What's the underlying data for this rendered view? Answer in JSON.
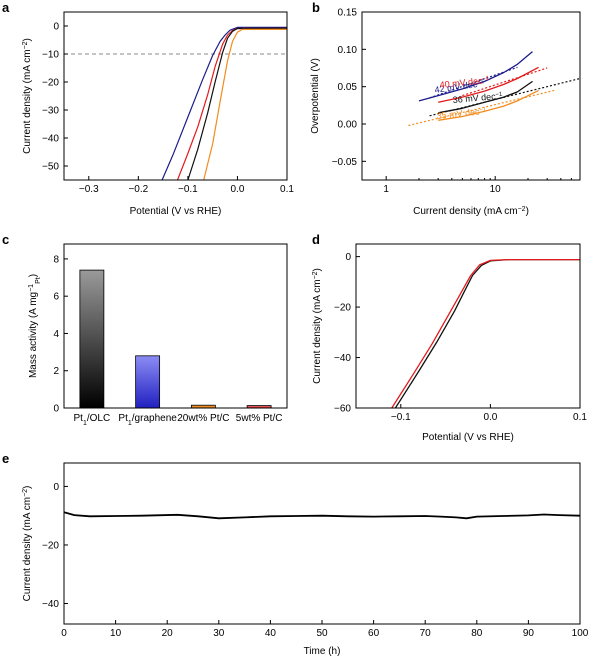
{
  "chart_data": [
    {
      "panel": "a",
      "type": "line",
      "xlabel": "Potential (V vs RHE)",
      "ylabel_main": "Current density (mA cm",
      "ylabel_sup": "−2",
      "ylabel_tail": ")",
      "xlim": [
        -0.35,
        0.1
      ],
      "ylim": [
        -55,
        5
      ],
      "xticks": [
        -0.3,
        -0.2,
        -0.1,
        0.0,
        0.1
      ],
      "xtick_labels": [
        "−0.3",
        "−0.2",
        "−0.1",
        "0.0",
        "0.1"
      ],
      "yticks": [
        0,
        -10,
        -20,
        -30,
        -40,
        -50
      ],
      "ytick_labels": [
        "0",
        "−10",
        "−20",
        "−30",
        "−40",
        "−50"
      ],
      "reference_line_y": -10,
      "series": [
        {
          "color": "#1c1c8c",
          "x": [
            -0.152,
            -0.13,
            -0.1,
            -0.07,
            -0.05,
            -0.035,
            -0.025,
            -0.015,
            0.0,
            0.1
          ],
          "y": [
            -55,
            -46,
            -32.5,
            -19,
            -10.5,
            -5.5,
            -3.2,
            -1.5,
            -0.5,
            -0.5
          ]
        },
        {
          "color": "#e31a1c",
          "x": [
            -0.121,
            -0.1,
            -0.08,
            -0.06,
            -0.045,
            -0.03,
            -0.02,
            -0.01,
            0.0,
            0.1
          ],
          "y": [
            -55,
            -45.5,
            -36,
            -24.5,
            -14.5,
            -6.5,
            -3.3,
            -1.6,
            -0.9,
            -0.9
          ]
        },
        {
          "color": "#111111",
          "x": [
            -0.1,
            -0.08,
            -0.06,
            -0.045,
            -0.03,
            -0.02,
            -0.01,
            0.0,
            0.1
          ],
          "y": [
            -55,
            -44,
            -31,
            -20,
            -9.5,
            -4.4,
            -1.9,
            -0.9,
            -0.8
          ]
        },
        {
          "color": "#f28c1e",
          "x": [
            -0.068,
            -0.05,
            -0.035,
            -0.02,
            -0.01,
            0.0,
            0.01,
            0.1
          ],
          "y": [
            -55,
            -42,
            -27,
            -12.5,
            -5.5,
            -2.2,
            -1.2,
            -1.2
          ]
        }
      ]
    },
    {
      "panel": "b",
      "type": "line",
      "xlabel_main": "Current density (mA cm",
      "xlabel_sup": "−2",
      "xlabel_tail": ")",
      "ylabel": "Overpotential (V)",
      "xscale": "log",
      "xlim": [
        0.6,
        60
      ],
      "ylim": [
        -0.075,
        0.15
      ],
      "xticks": [
        1,
        10
      ],
      "xtick_labels": [
        "1",
        "10"
      ],
      "yticks": [
        -0.05,
        0.0,
        0.05,
        0.1,
        0.15
      ],
      "ytick_labels": [
        "−0.05",
        "0.00",
        "0.05",
        "0.10",
        "0.15"
      ],
      "annotations": [
        {
          "text": "42 mV dec",
          "sup": "−1",
          "color": "#1c1c8c"
        },
        {
          "text": "40 mV dec",
          "sup": "−1",
          "color": "#e31a1c"
        },
        {
          "text": "36 mV dec",
          "sup": "−1",
          "color": "#111111"
        },
        {
          "text": "35 mV dec",
          "sup": "−1",
          "color": "#f28c1e"
        }
      ],
      "series": [
        {
          "color": "#1c1c8c",
          "x": [
            2,
            3,
            5,
            8,
            12,
            16,
            22
          ],
          "y": [
            0.031,
            0.038,
            0.047,
            0.057,
            0.069,
            0.08,
            0.097
          ]
        },
        {
          "color": "#e31a1c",
          "x": [
            3,
            5,
            8,
            12,
            16,
            25
          ],
          "y": [
            0.029,
            0.036,
            0.044,
            0.053,
            0.061,
            0.076
          ]
        },
        {
          "color": "#111111",
          "x": [
            3,
            5,
            8,
            12,
            16,
            22
          ],
          "y": [
            0.015,
            0.021,
            0.029,
            0.036,
            0.043,
            0.057
          ]
        },
        {
          "color": "#f28c1e",
          "x": [
            3,
            5,
            8,
            12,
            16,
            25
          ],
          "y": [
            0.005,
            0.01,
            0.017,
            0.024,
            0.031,
            0.045
          ]
        }
      ],
      "fits": [
        {
          "color": "#1c1c8c",
          "x": [
            2.5,
            16
          ],
          "y": [
            0.035,
            0.076
          ]
        },
        {
          "color": "#e31a1c",
          "x": [
            5,
            30
          ],
          "y": [
            0.038,
            0.075
          ]
        },
        {
          "color": "#111111",
          "x": [
            2.5,
            60
          ],
          "y": [
            0.011,
            0.061
          ]
        },
        {
          "color": "#f28c1e",
          "x": [
            1.6,
            35
          ],
          "y": [
            -0.002,
            0.045
          ]
        }
      ]
    },
    {
      "panel": "c",
      "type": "bar",
      "ylabel_main": "Mass activity (A mg",
      "ylabel_sup": "−1",
      "ylabel_sub": "Pt",
      "ylabel_tail": ")",
      "ylim": [
        0,
        8.8
      ],
      "yticks": [
        0,
        2,
        4,
        6,
        8
      ],
      "ytick_labels": [
        "0",
        "2",
        "4",
        "6",
        "8"
      ],
      "categories": [
        {
          "main": "Pt",
          "sub": "1",
          "rest": "/OLC",
          "color": "#000000"
        },
        {
          "main": "Pt",
          "sub": "1",
          "rest": "/graphene",
          "color": "#2020b0"
        },
        {
          "main": "20wt% Pt/C",
          "sub": "",
          "rest": "",
          "color": "#f28c1e"
        },
        {
          "main": "5wt% Pt/C",
          "sub": "",
          "rest": "",
          "color": "#e31a1c"
        }
      ],
      "values": [
        7.4,
        2.8,
        0.15,
        0.13
      ],
      "bar_top_colors": [
        "#9a9a9a",
        "#8c8cf5",
        "#f5a040",
        "#f07070"
      ],
      "bar_bottom_colors": [
        "#000000",
        "#2020c0",
        "#e37a0e",
        "#d42020"
      ]
    },
    {
      "panel": "d",
      "type": "line",
      "xlabel": "Potential (V vs RHE)",
      "ylabel_main": "Current density (mA cm",
      "ylabel_sup": "−2",
      "ylabel_tail": ")",
      "xlim": [
        -0.15,
        0.1
      ],
      "ylim": [
        -60,
        5
      ],
      "xticks": [
        -0.1,
        0.0,
        0.1
      ],
      "xtick_labels": [
        "−0.1",
        "0.0",
        "0.1"
      ],
      "yticks": [
        0,
        -20,
        -40,
        -60
      ],
      "ytick_labels": [
        "0",
        "−20",
        "−40",
        "−60"
      ],
      "series": [
        {
          "color": "#111111",
          "x": [
            -0.106,
            -0.08,
            -0.06,
            -0.04,
            -0.03,
            -0.02,
            -0.01,
            0.0,
            0.02,
            0.1
          ],
          "y": [
            -60,
            -45.5,
            -34,
            -21.5,
            -14.5,
            -7.5,
            -3.5,
            -1.7,
            -1.2,
            -1.2
          ]
        },
        {
          "color": "#e31a1c",
          "x": [
            -0.11,
            -0.085,
            -0.065,
            -0.045,
            -0.033,
            -0.022,
            -0.012,
            0.0,
            0.02,
            0.1
          ],
          "y": [
            -60,
            -46,
            -34.5,
            -22,
            -14.5,
            -7.5,
            -3.3,
            -1.5,
            -1.2,
            -1.2
          ]
        }
      ]
    },
    {
      "panel": "e",
      "type": "line",
      "xlabel": "Time (h)",
      "ylabel_main": "Current density (mA cm",
      "ylabel_sup": "−2",
      "ylabel_tail": ")",
      "xlim": [
        0,
        100
      ],
      "ylim": [
        -47,
        8
      ],
      "xticks": [
        0,
        10,
        20,
        30,
        40,
        50,
        60,
        70,
        80,
        90,
        100
      ],
      "xtick_labels": [
        "0",
        "10",
        "20",
        "30",
        "40",
        "50",
        "60",
        "70",
        "80",
        "90",
        "100"
      ],
      "yticks": [
        0,
        -20,
        -40
      ],
      "ytick_labels": [
        "0",
        "−20",
        "−40"
      ],
      "series": [
        {
          "color": "#000000",
          "x": [
            0,
            2,
            5,
            10,
            15,
            22,
            26,
            30,
            35,
            40,
            45,
            50,
            55,
            60,
            65,
            70,
            73,
            76,
            78,
            80,
            85,
            90,
            93,
            96,
            100
          ],
          "y": [
            -8.8,
            -9.8,
            -10.2,
            -10.1,
            -10.0,
            -9.7,
            -10.2,
            -10.9,
            -10.6,
            -10.2,
            -10.1,
            -10.0,
            -10.2,
            -10.3,
            -10.2,
            -10.1,
            -10.3,
            -10.6,
            -10.9,
            -10.3,
            -10.1,
            -9.9,
            -9.6,
            -9.8,
            -10.0
          ]
        }
      ]
    }
  ]
}
